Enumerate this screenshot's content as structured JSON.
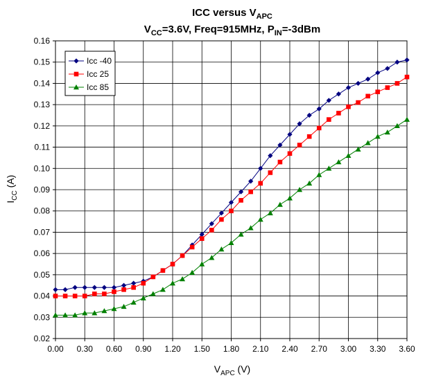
{
  "chart_data": {
    "type": "line",
    "title_parts": [
      "ICC versus V",
      "APC"
    ],
    "subtitle_parts": {
      "vcc_base": "V",
      "vcc_sub": "CC",
      "vcc_rest": "=3.6V, Freq=915MHz, P",
      "pin_sub": "IN",
      "pin_rest": "=-3dBm"
    },
    "xlabel_parts": [
      "V",
      "APC",
      " (V)"
    ],
    "ylabel_parts": [
      "I",
      "CC",
      " (A)"
    ],
    "xlim": [
      0,
      3.6
    ],
    "ylim": [
      0.02,
      0.16
    ],
    "x_ticks": [
      "0.00",
      "0.30",
      "0.60",
      "0.90",
      "1.20",
      "1.50",
      "1.80",
      "2.10",
      "2.40",
      "2.70",
      "3.00",
      "3.30",
      "3.60"
    ],
    "y_ticks": [
      "0.02",
      "0.03",
      "0.04",
      "0.05",
      "0.06",
      "0.07",
      "0.08",
      "0.09",
      "0.10",
      "0.11",
      "0.12",
      "0.13",
      "0.14",
      "0.15",
      "0.16"
    ],
    "grid": true,
    "legend_position": "top-left",
    "x": [
      0.0,
      0.1,
      0.2,
      0.3,
      0.4,
      0.5,
      0.6,
      0.7,
      0.8,
      0.9,
      1.0,
      1.1,
      1.2,
      1.3,
      1.4,
      1.5,
      1.6,
      1.7,
      1.8,
      1.9,
      2.0,
      2.1,
      2.2,
      2.3,
      2.4,
      2.5,
      2.6,
      2.7,
      2.8,
      2.9,
      3.0,
      3.1,
      3.2,
      3.3,
      3.4,
      3.5,
      3.6
    ],
    "series": [
      {
        "name": "Icc -40",
        "color": "#000080",
        "marker": "diamond",
        "values": [
          0.043,
          0.043,
          0.044,
          0.044,
          0.044,
          0.044,
          0.044,
          0.045,
          0.046,
          0.047,
          0.049,
          0.052,
          0.055,
          0.059,
          0.064,
          0.069,
          0.074,
          0.079,
          0.084,
          0.089,
          0.094,
          0.1,
          0.106,
          0.111,
          0.116,
          0.121,
          0.125,
          0.128,
          0.132,
          0.135,
          0.138,
          0.14,
          0.142,
          0.145,
          0.147,
          0.15,
          0.151
        ]
      },
      {
        "name": "Icc 25",
        "color": "#ff0000",
        "marker": "square",
        "values": [
          0.04,
          0.04,
          0.04,
          0.04,
          0.041,
          0.041,
          0.042,
          0.043,
          0.044,
          0.046,
          0.049,
          0.052,
          0.055,
          0.059,
          0.063,
          0.067,
          0.071,
          0.076,
          0.08,
          0.085,
          0.089,
          0.093,
          0.098,
          0.103,
          0.107,
          0.111,
          0.115,
          0.119,
          0.123,
          0.126,
          0.129,
          0.131,
          0.134,
          0.136,
          0.138,
          0.14,
          0.143
        ]
      },
      {
        "name": "Icc 85",
        "color": "#008000",
        "marker": "triangle",
        "values": [
          0.031,
          0.031,
          0.031,
          0.032,
          0.032,
          0.033,
          0.034,
          0.035,
          0.037,
          0.039,
          0.041,
          0.043,
          0.046,
          0.048,
          0.051,
          0.055,
          0.058,
          0.062,
          0.065,
          0.069,
          0.072,
          0.076,
          0.079,
          0.083,
          0.086,
          0.09,
          0.093,
          0.097,
          0.1,
          0.103,
          0.106,
          0.109,
          0.112,
          0.115,
          0.117,
          0.12,
          0.123
        ]
      }
    ]
  }
}
